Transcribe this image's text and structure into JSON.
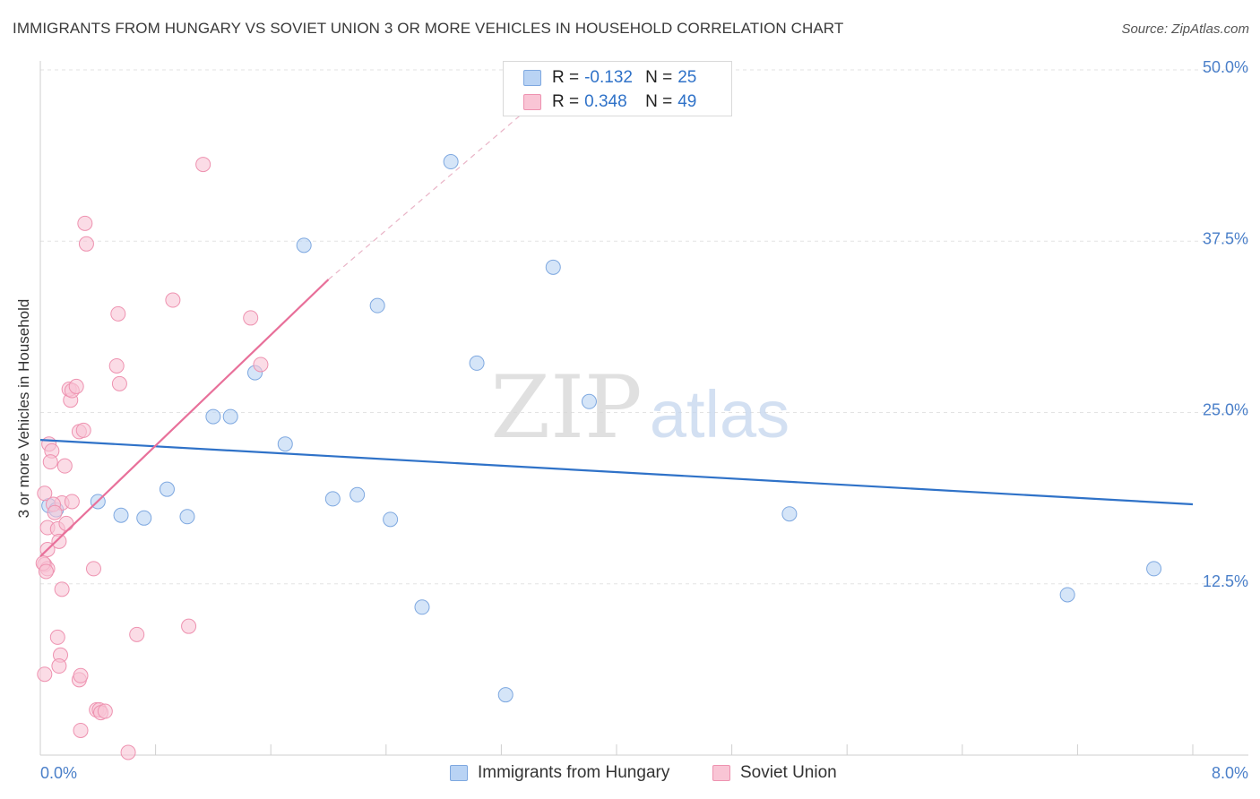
{
  "header": {
    "title": "IMMIGRANTS FROM HUNGARY VS SOVIET UNION 3 OR MORE VEHICLES IN HOUSEHOLD CORRELATION CHART",
    "source": "Source: ZipAtlas.com"
  },
  "watermark": {
    "zip": "ZIP",
    "atlas": "atlas"
  },
  "stats": {
    "r_label": "R =",
    "n_label": "N =",
    "rows": [
      {
        "r": "-0.132",
        "n": "25"
      },
      {
        "r": "0.348",
        "n": "49"
      }
    ]
  },
  "legend": {
    "items": [
      {
        "label": "Immigrants from Hungary"
      },
      {
        "label": "Soviet Union"
      }
    ]
  },
  "colors": {
    "blue_fill": "#b9d3f4",
    "blue_stroke": "#7ea8e0",
    "blue_line": "#2f72c8",
    "pink_fill": "#f9c5d5",
    "pink_stroke": "#ee92b0",
    "pink_line": "#e8709a",
    "axis_label": "#4a7fc9",
    "grid": "#e3e3e3"
  },
  "chart_data": {
    "type": "scatter",
    "title": "IMMIGRANTS FROM HUNGARY VS SOVIET UNION 3 OR MORE VEHICLES IN HOUSEHOLD CORRELATION CHART",
    "xlabel": "",
    "ylabel": "3 or more Vehicles in Household",
    "xlim": [
      0,
      8
    ],
    "ylim": [
      0,
      50
    ],
    "x_tick_labels": [
      {
        "value": 0,
        "label": "0.0%"
      },
      {
        "value": 8,
        "label": "8.0%"
      }
    ],
    "y_tick_labels": [
      {
        "value": 12.5,
        "label": "12.5%"
      },
      {
        "value": 25,
        "label": "25.0%"
      },
      {
        "value": 37.5,
        "label": "37.5%"
      },
      {
        "value": 50,
        "label": "50.0%"
      }
    ],
    "grid": true,
    "legend_position": "bottom-center",
    "series": [
      {
        "name": "Immigrants from Hungary",
        "color": "blue",
        "points": [
          [
            0.06,
            18.2
          ],
          [
            0.4,
            18.5
          ],
          [
            0.56,
            17.5
          ],
          [
            0.72,
            17.3
          ],
          [
            0.88,
            19.4
          ],
          [
            1.02,
            17.4
          ],
          [
            1.2,
            24.7
          ],
          [
            1.32,
            24.7
          ],
          [
            1.49,
            27.9
          ],
          [
            1.7,
            22.7
          ],
          [
            1.83,
            37.2
          ],
          [
            2.03,
            18.7
          ],
          [
            2.2,
            19.0
          ],
          [
            2.34,
            32.8
          ],
          [
            2.43,
            17.2
          ],
          [
            2.65,
            10.8
          ],
          [
            2.85,
            43.3
          ],
          [
            3.03,
            28.6
          ],
          [
            3.23,
            4.4
          ],
          [
            3.56,
            35.6
          ],
          [
            3.81,
            25.8
          ],
          [
            5.2,
            17.6
          ],
          [
            7.13,
            11.7
          ],
          [
            7.73,
            13.6
          ],
          [
            0.11,
            17.9
          ]
        ],
        "trend": {
          "x": [
            0,
            8
          ],
          "y": [
            23.0,
            18.3
          ]
        }
      },
      {
        "name": "Soviet Union",
        "color": "pink",
        "points": [
          [
            0.03,
            19.1
          ],
          [
            0.06,
            22.7
          ],
          [
            0.08,
            22.2
          ],
          [
            0.05,
            16.6
          ],
          [
            0.12,
            16.5
          ],
          [
            0.05,
            15.0
          ],
          [
            0.03,
            13.9
          ],
          [
            0.05,
            13.6
          ],
          [
            0.02,
            14.0
          ],
          [
            0.15,
            12.1
          ],
          [
            0.13,
            15.6
          ],
          [
            0.17,
            21.1
          ],
          [
            0.15,
            18.4
          ],
          [
            0.22,
            18.5
          ],
          [
            0.21,
            25.9
          ],
          [
            0.2,
            26.7
          ],
          [
            0.22,
            26.6
          ],
          [
            0.25,
            26.9
          ],
          [
            0.27,
            23.6
          ],
          [
            0.3,
            23.7
          ],
          [
            0.31,
            38.8
          ],
          [
            0.32,
            37.3
          ],
          [
            0.37,
            13.6
          ],
          [
            0.39,
            3.3
          ],
          [
            0.41,
            3.3
          ],
          [
            0.42,
            3.1
          ],
          [
            0.45,
            3.2
          ],
          [
            0.53,
            28.4
          ],
          [
            0.54,
            32.2
          ],
          [
            0.55,
            27.1
          ],
          [
            0.67,
            8.8
          ],
          [
            0.92,
            33.2
          ],
          [
            1.03,
            9.4
          ],
          [
            1.13,
            43.1
          ],
          [
            1.46,
            31.9
          ],
          [
            1.53,
            28.5
          ],
          [
            0.12,
            8.6
          ],
          [
            0.14,
            7.3
          ],
          [
            0.13,
            6.5
          ],
          [
            0.03,
            5.9
          ],
          [
            0.27,
            5.5
          ],
          [
            0.28,
            5.8
          ],
          [
            0.28,
            1.8
          ],
          [
            0.61,
            0.2
          ],
          [
            0.09,
            18.3
          ],
          [
            0.07,
            21.4
          ],
          [
            0.04,
            13.4
          ],
          [
            0.1,
            17.7
          ],
          [
            0.18,
            16.9
          ]
        ],
        "trend": {
          "x": [
            0,
            2.0
          ],
          "y": [
            14.5,
            34.7
          ]
        },
        "trend_extension": {
          "x": [
            2.0,
            3.7
          ],
          "y": [
            34.7,
            50.0
          ]
        }
      }
    ]
  }
}
